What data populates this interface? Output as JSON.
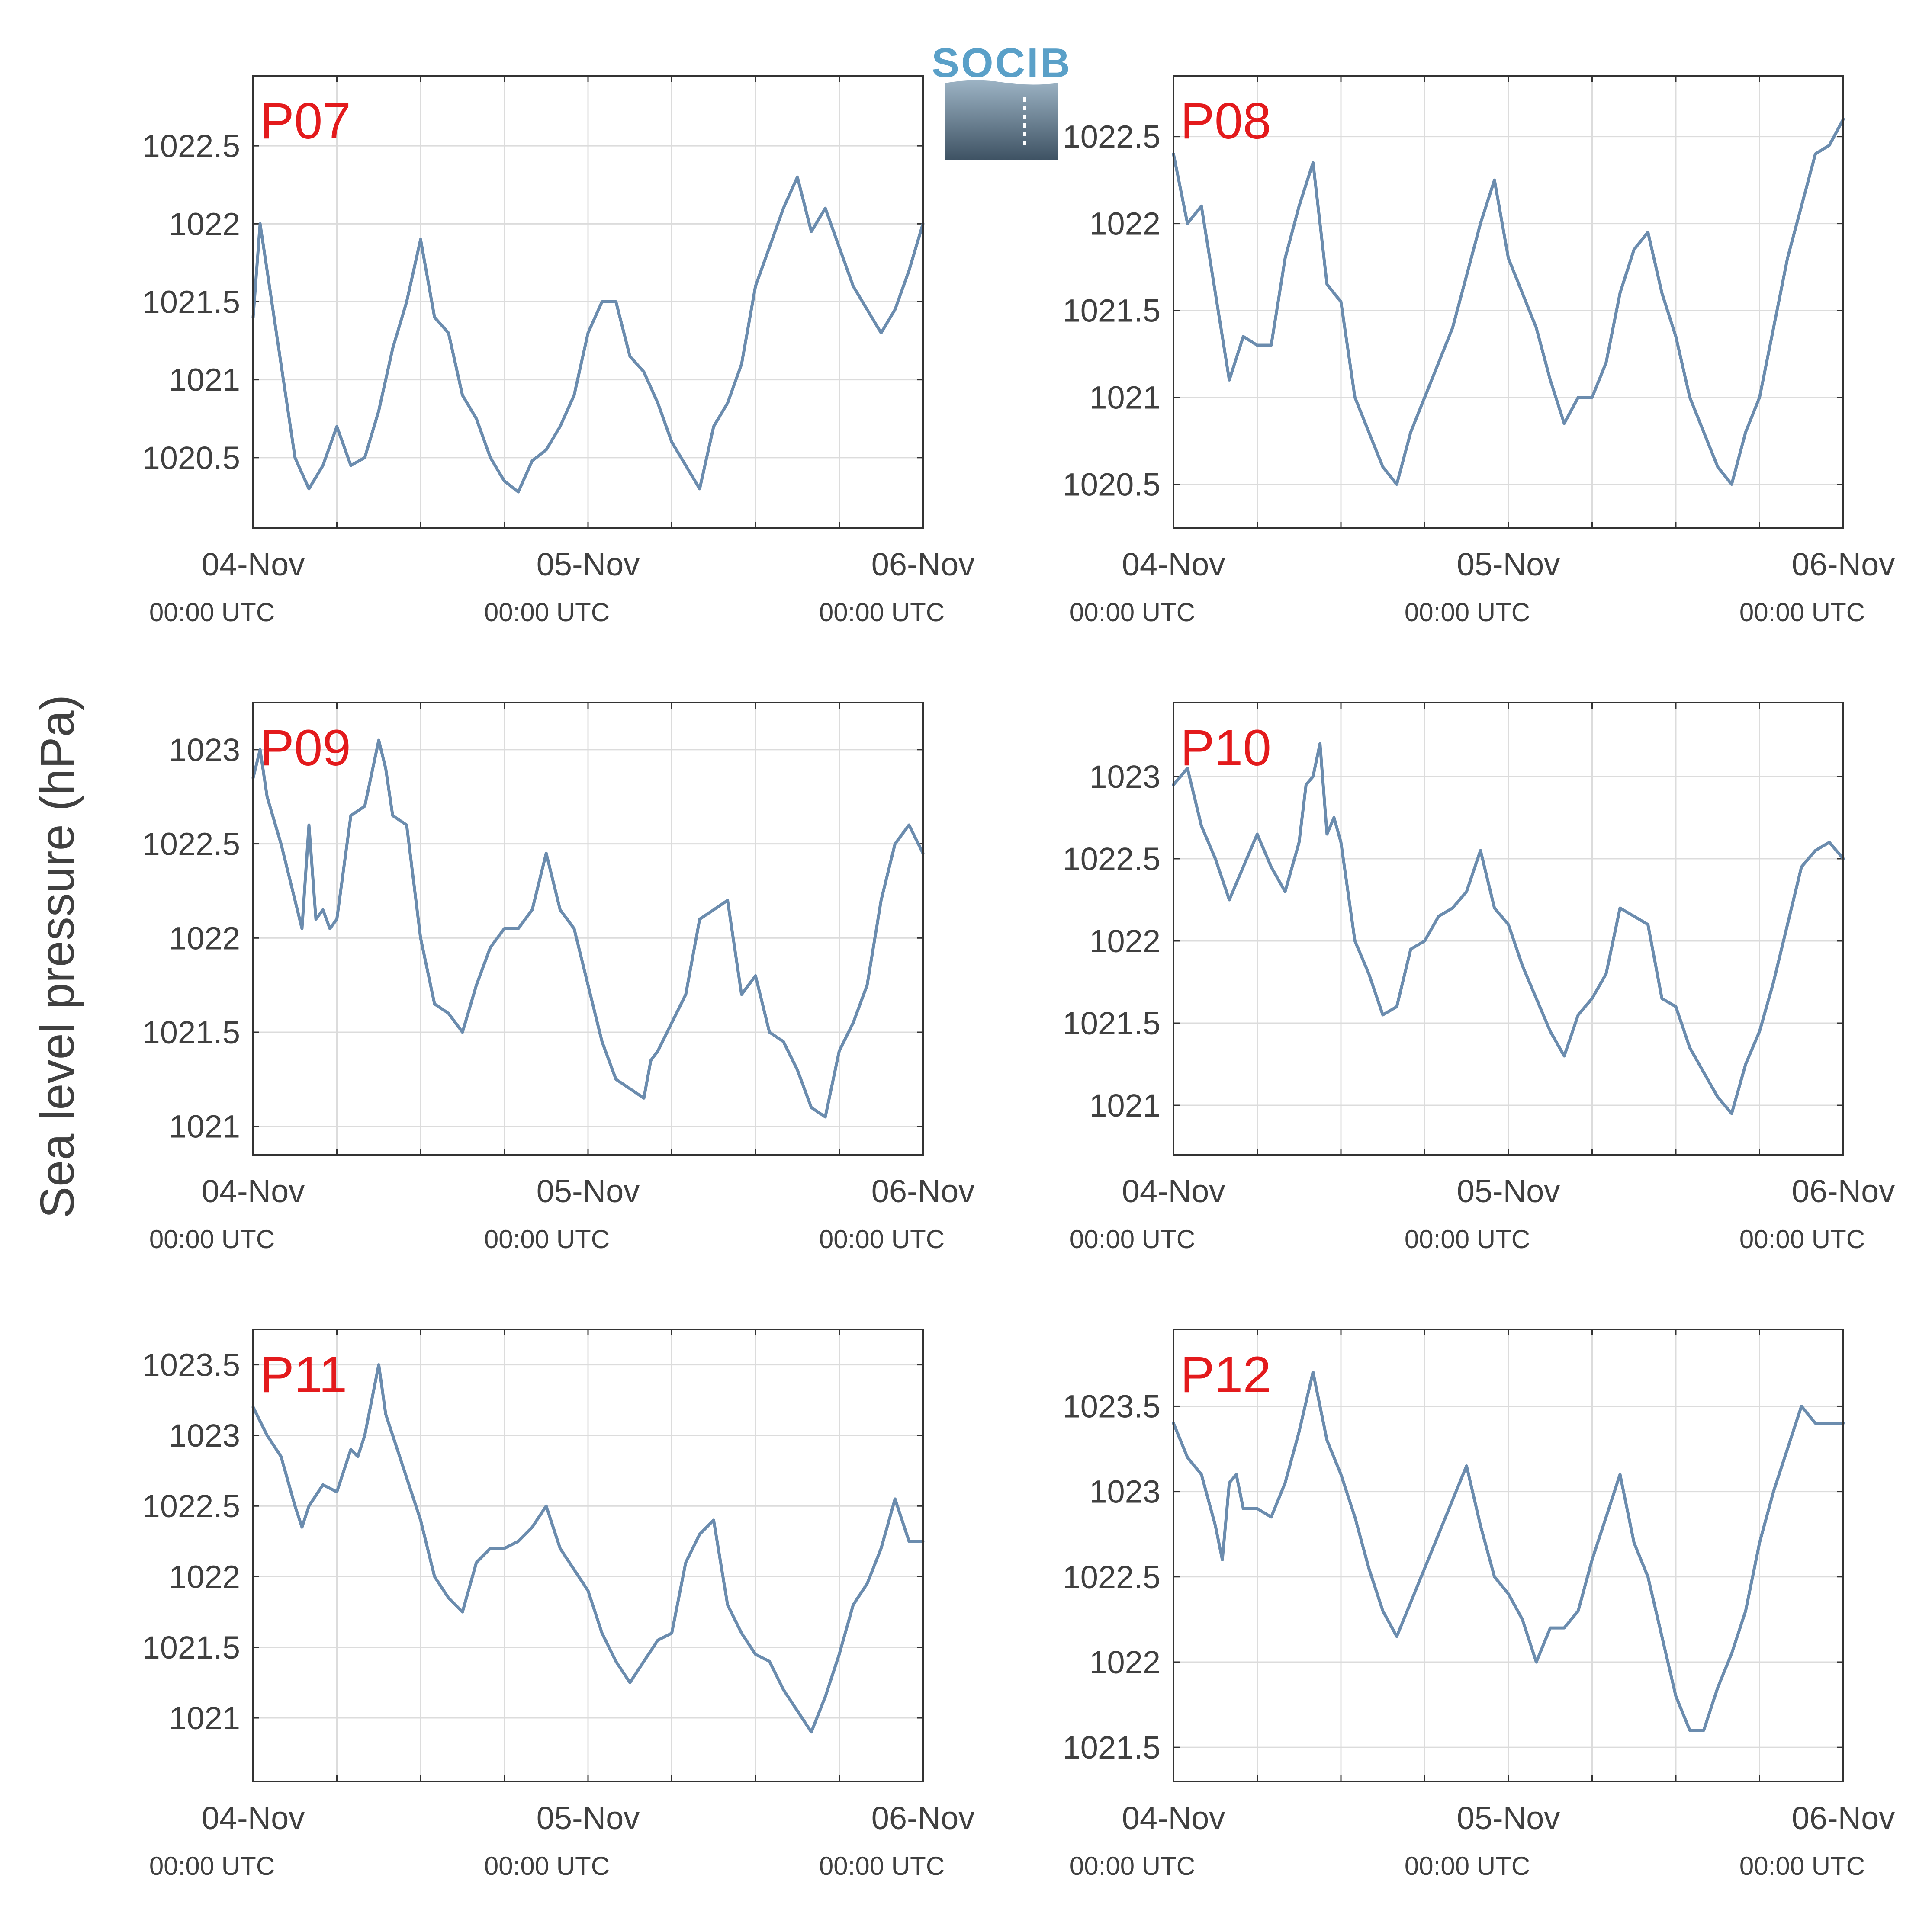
{
  "figure": {
    "ylabel": "Sea level pressure (hPa)",
    "logo_text": "SOCIB",
    "line_color": "#6b8cae",
    "label_color": "#e31a1c",
    "grid_color": "#dcdcdc"
  },
  "chart_data": [
    {
      "type": "line",
      "panel_label": "P07",
      "x_range": [
        "2024-11-04T00:00",
        "2024-11-06T00:00"
      ],
      "ylim": [
        1020.05,
        1022.95
      ],
      "y_ticks": [
        1020.5,
        1021,
        1021.5,
        1022,
        1022.5
      ],
      "y_tick_labels": [
        "1020.5",
        "1021",
        "1021.5",
        "1022",
        "1022.5"
      ],
      "x_tick_labels": [
        "04-Nov",
        "05-Nov",
        "06-Nov"
      ],
      "x_tick_sublabels": [
        "00:00 UTC",
        "00:00 UTC",
        "00:00 UTC"
      ],
      "grid": true,
      "series": [
        {
          "x_hours": [
            0,
            0.5,
            1,
            1.5,
            2,
            3,
            4,
            5,
            6,
            7,
            8,
            9,
            10,
            11,
            12,
            13,
            14,
            15,
            16,
            17,
            18,
            19,
            20,
            21,
            22,
            23,
            24,
            25,
            26,
            27,
            28,
            29,
            30,
            31,
            32,
            33,
            34,
            35,
            36,
            37,
            38,
            39,
            40,
            41,
            42,
            43,
            44,
            45,
            46,
            47,
            48
          ],
          "values": [
            1021.4,
            1022.0,
            1021.7,
            1021.4,
            1021.1,
            1020.5,
            1020.3,
            1020.45,
            1020.7,
            1020.45,
            1020.5,
            1020.8,
            1021.2,
            1021.5,
            1021.9,
            1021.4,
            1021.3,
            1020.9,
            1020.75,
            1020.5,
            1020.35,
            1020.28,
            1020.48,
            1020.55,
            1020.7,
            1020.9,
            1021.3,
            1021.5,
            1021.5,
            1021.15,
            1021.05,
            1020.85,
            1020.6,
            1020.45,
            1020.3,
            1020.7,
            1020.85,
            1021.1,
            1021.6,
            1021.85,
            1022.1,
            1022.3,
            1021.95,
            1022.1,
            1021.85,
            1021.6,
            1021.45,
            1021.3,
            1021.45,
            1021.7,
            1022.0
          ]
        }
      ]
    },
    {
      "type": "line",
      "panel_label": "P08",
      "x_range": [
        "2024-11-04T00:00",
        "2024-11-06T00:00"
      ],
      "ylim": [
        1020.25,
        1022.85
      ],
      "y_ticks": [
        1020.5,
        1021,
        1021.5,
        1022,
        1022.5
      ],
      "y_tick_labels": [
        "1020.5",
        "1021",
        "1021.5",
        "1022",
        "1022.5"
      ],
      "x_tick_labels": [
        "04-Nov",
        "05-Nov",
        "06-Nov"
      ],
      "x_tick_sublabels": [
        "00:00 UTC",
        "00:00 UTC",
        "00:00 UTC"
      ],
      "grid": true,
      "series": [
        {
          "x_hours": [
            0,
            1,
            2,
            3,
            4,
            5,
            6,
            7,
            8,
            9,
            10,
            11,
            12,
            13,
            14,
            15,
            16,
            17,
            18,
            19,
            20,
            21,
            22,
            23,
            24,
            25,
            26,
            27,
            28,
            29,
            30,
            31,
            32,
            33,
            34,
            35,
            36,
            37,
            38,
            39,
            40,
            41,
            42,
            43,
            44,
            45,
            46,
            47,
            48
          ],
          "values": [
            1022.4,
            1022.0,
            1022.1,
            1021.6,
            1021.1,
            1021.35,
            1021.3,
            1021.3,
            1021.8,
            1022.1,
            1022.35,
            1021.65,
            1021.55,
            1021.0,
            1020.8,
            1020.6,
            1020.5,
            1020.8,
            1021.0,
            1021.2,
            1021.4,
            1021.7,
            1022.0,
            1022.25,
            1021.8,
            1021.6,
            1021.4,
            1021.1,
            1020.85,
            1021.0,
            1021.0,
            1021.2,
            1021.6,
            1021.85,
            1021.95,
            1021.6,
            1021.35,
            1021.0,
            1020.8,
            1020.6,
            1020.5,
            1020.8,
            1021.0,
            1021.4,
            1021.8,
            1022.1,
            1022.4,
            1022.45,
            1022.6
          ]
        }
      ]
    },
    {
      "type": "line",
      "panel_label": "P09",
      "x_range": [
        "2024-11-04T00:00",
        "2024-11-06T00:00"
      ],
      "ylim": [
        1020.85,
        1023.25
      ],
      "y_ticks": [
        1021,
        1021.5,
        1022,
        1022.5,
        1023
      ],
      "y_tick_labels": [
        "1021",
        "1021.5",
        "1022",
        "1022.5",
        "1023"
      ],
      "x_tick_labels": [
        "04-Nov",
        "05-Nov",
        "06-Nov"
      ],
      "x_tick_sublabels": [
        "00:00 UTC",
        "00:00 UTC",
        "00:00 UTC"
      ],
      "grid": true,
      "series": [
        {
          "x_hours": [
            0,
            0.5,
            1,
            2,
            3,
            3.5,
            4,
            4.5,
            5,
            5.5,
            6,
            7,
            8,
            9,
            9.5,
            10,
            11,
            12,
            13,
            14,
            15,
            16,
            17,
            18,
            19,
            20,
            21,
            22,
            23,
            24,
            25,
            26,
            27,
            28,
            28.5,
            29,
            30,
            31,
            32,
            33,
            34,
            35,
            36,
            37,
            38,
            39,
            40,
            41,
            42,
            43,
            44,
            45,
            46,
            47,
            48
          ],
          "values": [
            1022.85,
            1023.0,
            1022.75,
            1022.5,
            1022.2,
            1022.05,
            1022.6,
            1022.1,
            1022.15,
            1022.05,
            1022.1,
            1022.65,
            1022.7,
            1023.05,
            1022.9,
            1022.65,
            1022.6,
            1022.0,
            1021.65,
            1021.6,
            1021.5,
            1021.75,
            1021.95,
            1022.05,
            1022.05,
            1022.15,
            1022.45,
            1022.15,
            1022.05,
            1021.75,
            1021.45,
            1021.25,
            1021.2,
            1021.15,
            1021.35,
            1021.4,
            1021.55,
            1021.7,
            1022.1,
            1022.15,
            1022.2,
            1021.7,
            1021.8,
            1021.5,
            1021.45,
            1021.3,
            1021.1,
            1021.05,
            1021.4,
            1021.55,
            1021.75,
            1022.2,
            1022.5,
            1022.6,
            1022.45
          ]
        }
      ]
    },
    {
      "type": "line",
      "panel_label": "P10",
      "x_range": [
        "2024-11-04T00:00",
        "2024-11-06T00:00"
      ],
      "ylim": [
        1020.7,
        1023.45
      ],
      "y_ticks": [
        1021,
        1021.5,
        1022,
        1022.5,
        1023
      ],
      "y_tick_labels": [
        "1021",
        "1021.5",
        "1022",
        "1022.5",
        "1023"
      ],
      "x_tick_labels": [
        "04-Nov",
        "05-Nov",
        "06-Nov"
      ],
      "x_tick_sublabels": [
        "00:00 UTC",
        "00:00 UTC",
        "00:00 UTC"
      ],
      "grid": true,
      "series": [
        {
          "x_hours": [
            0,
            1,
            2,
            3,
            4,
            5,
            6,
            7,
            8,
            9,
            9.5,
            10,
            10.5,
            11,
            11.5,
            12,
            13,
            14,
            15,
            16,
            17,
            18,
            19,
            20,
            21,
            22,
            23,
            24,
            25,
            26,
            27,
            28,
            29,
            30,
            31,
            32,
            33,
            34,
            35,
            36,
            37,
            38,
            39,
            40,
            41,
            42,
            43,
            44,
            45,
            46,
            47,
            48
          ],
          "values": [
            1022.95,
            1023.05,
            1022.7,
            1022.5,
            1022.25,
            1022.45,
            1022.65,
            1022.45,
            1022.3,
            1022.6,
            1022.95,
            1023.0,
            1023.2,
            1022.65,
            1022.75,
            1022.6,
            1022.0,
            1021.8,
            1021.55,
            1021.6,
            1021.95,
            1022.0,
            1022.15,
            1022.2,
            1022.3,
            1022.55,
            1022.2,
            1022.1,
            1021.85,
            1021.65,
            1021.45,
            1021.3,
            1021.55,
            1021.65,
            1021.8,
            1022.2,
            1022.15,
            1022.1,
            1021.65,
            1021.6,
            1021.35,
            1021.2,
            1021.05,
            1020.95,
            1021.25,
            1021.45,
            1021.75,
            1022.1,
            1022.45,
            1022.55,
            1022.6,
            1022.5
          ]
        }
      ]
    },
    {
      "type": "line",
      "panel_label": "P11",
      "x_range": [
        "2024-11-04T00:00",
        "2024-11-06T00:00"
      ],
      "ylim": [
        1020.55,
        1023.75
      ],
      "y_ticks": [
        1021,
        1021.5,
        1022,
        1022.5,
        1023,
        1023.5
      ],
      "y_tick_labels": [
        "1021",
        "1021.5",
        "1022",
        "1022.5",
        "1023",
        "1023.5"
      ],
      "x_tick_labels": [
        "04-Nov",
        "05-Nov",
        "06-Nov"
      ],
      "x_tick_sublabels": [
        "00:00 UTC",
        "00:00 UTC",
        "00:00 UTC"
      ],
      "grid": true,
      "series": [
        {
          "x_hours": [
            0,
            1,
            2,
            3,
            3.5,
            4,
            5,
            6,
            7,
            7.5,
            8,
            9,
            9.5,
            10,
            11,
            12,
            13,
            14,
            15,
            16,
            17,
            18,
            19,
            20,
            21,
            22,
            23,
            24,
            25,
            26,
            27,
            28,
            29,
            30,
            31,
            32,
            33,
            34,
            35,
            36,
            37,
            38,
            39,
            40,
            41,
            42,
            43,
            44,
            45,
            46,
            47,
            48
          ],
          "values": [
            1023.2,
            1023.0,
            1022.85,
            1022.5,
            1022.35,
            1022.5,
            1022.65,
            1022.6,
            1022.9,
            1022.85,
            1023.0,
            1023.5,
            1023.15,
            1023.0,
            1022.7,
            1022.4,
            1022.0,
            1021.85,
            1021.75,
            1022.1,
            1022.2,
            1022.2,
            1022.25,
            1022.35,
            1022.5,
            1022.2,
            1022.05,
            1021.9,
            1021.6,
            1021.4,
            1021.25,
            1021.4,
            1021.55,
            1021.6,
            1022.1,
            1022.3,
            1022.4,
            1021.8,
            1021.6,
            1021.45,
            1021.4,
            1021.2,
            1021.05,
            1020.9,
            1021.15,
            1021.45,
            1021.8,
            1021.95,
            1022.2,
            1022.55,
            1022.25,
            1022.25
          ]
        }
      ]
    },
    {
      "type": "line",
      "panel_label": "P12",
      "x_range": [
        "2024-11-04T00:00",
        "2024-11-06T00:00"
      ],
      "ylim": [
        1021.3,
        1023.95
      ],
      "y_ticks": [
        1021.5,
        1022,
        1022.5,
        1023,
        1023.5
      ],
      "y_tick_labels": [
        "1021.5",
        "1022",
        "1022.5",
        "1023",
        "1023.5"
      ],
      "x_tick_labels": [
        "04-Nov",
        "05-Nov",
        "06-Nov"
      ],
      "x_tick_sublabels": [
        "00:00 UTC",
        "00:00 UTC",
        "00:00 UTC"
      ],
      "grid": true,
      "series": [
        {
          "x_hours": [
            0,
            1,
            2,
            3,
            3.5,
            4,
            4.5,
            5,
            6,
            7,
            8,
            9,
            10,
            10.5,
            11,
            12,
            13,
            14,
            15,
            16,
            17,
            18,
            19,
            20,
            21,
            22,
            23,
            24,
            25,
            26,
            27,
            28,
            29,
            30,
            31,
            32,
            33,
            34,
            35,
            36,
            37,
            38,
            39,
            40,
            41,
            42,
            43,
            44,
            45,
            46,
            47,
            48
          ],
          "values": [
            1023.4,
            1023.2,
            1023.1,
            1022.8,
            1022.6,
            1023.05,
            1023.1,
            1022.9,
            1022.9,
            1022.85,
            1023.05,
            1023.35,
            1023.7,
            1023.5,
            1023.3,
            1023.1,
            1022.85,
            1022.55,
            1022.3,
            1022.15,
            1022.35,
            1022.55,
            1022.75,
            1022.95,
            1023.15,
            1022.8,
            1022.5,
            1022.4,
            1022.25,
            1022.0,
            1022.2,
            1022.2,
            1022.3,
            1022.6,
            1022.85,
            1023.1,
            1022.7,
            1022.5,
            1022.15,
            1021.8,
            1021.6,
            1021.6,
            1021.85,
            1022.05,
            1022.3,
            1022.7,
            1023.0,
            1023.25,
            1023.5,
            1023.4,
            1023.4,
            1023.4
          ]
        }
      ]
    }
  ]
}
